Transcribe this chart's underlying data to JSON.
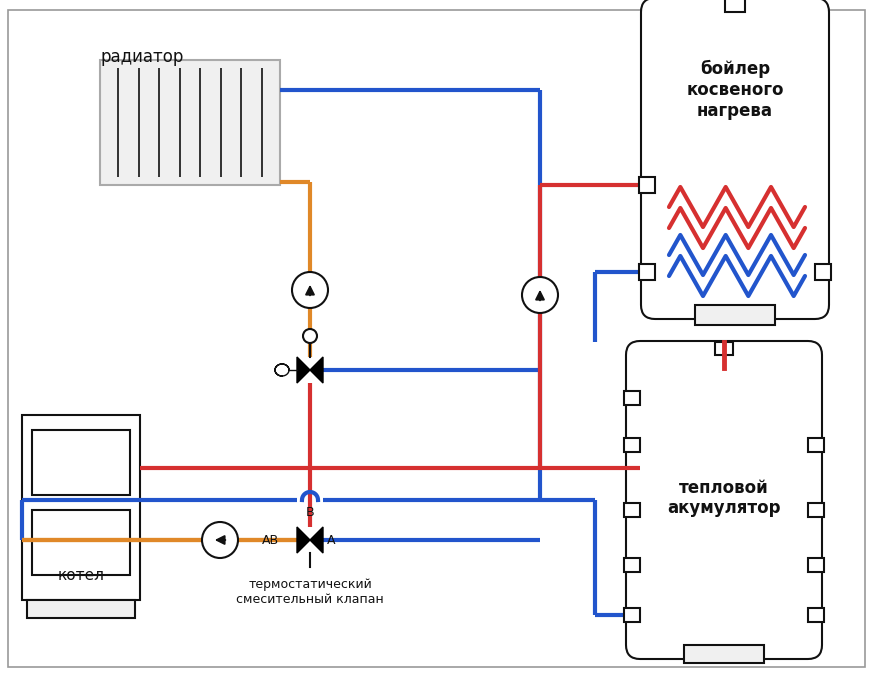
{
  "bg": "#ffffff",
  "red": "#d63030",
  "blue": "#2255cc",
  "orange": "#e08828",
  "dark": "#111111",
  "lgray": "#f0f0f0",
  "mgray": "#aaaaaa",
  "lw": 3.0,
  "lw_thin": 1.5,
  "label_radiator": "радиатор",
  "label_boiler": "бойлер\nкосвеного\nнагрева",
  "label_accum": "тепловой\nакумулятор",
  "label_kotel": "котел",
  "label_valve_bot": "термостатический\nсмесительный клапан"
}
